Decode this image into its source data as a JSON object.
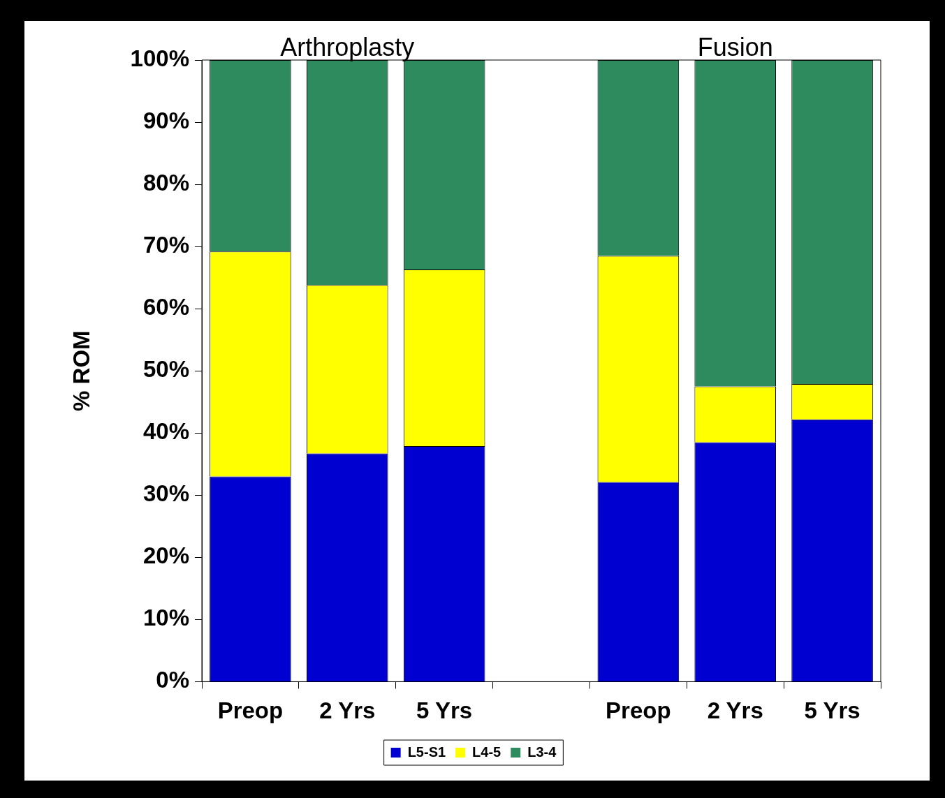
{
  "chart_data": {
    "type": "bar",
    "stacked": true,
    "ylabel": "% ROM",
    "annotations": [
      "Arthroplasty",
      "Fusion"
    ],
    "categories": [
      "Preop",
      "2 Yrs",
      "5 Yrs",
      null,
      "Preop",
      "2 Yrs",
      "5 Yrs"
    ],
    "series": [
      {
        "name": "L5-S1",
        "color": "#0000d0",
        "values": [
          33.0,
          36.7,
          37.9,
          null,
          32.1,
          38.5,
          42.2
        ]
      },
      {
        "name": "L4-5",
        "color": "#ffff00",
        "values": [
          36.2,
          27.1,
          28.4,
          null,
          36.4,
          9.0,
          5.7
        ]
      },
      {
        "name": "L3-4",
        "color": "#2e8b5e",
        "values": [
          30.8,
          36.2,
          33.7,
          null,
          31.5,
          52.5,
          52.1
        ]
      }
    ],
    "ylim": [
      0,
      100
    ],
    "yticks": [
      {
        "value": 0,
        "label": "0%"
      },
      {
        "value": 10,
        "label": "10%"
      },
      {
        "value": 20,
        "label": "20%"
      },
      {
        "value": 30,
        "label": "30%"
      },
      {
        "value": 40,
        "label": "40%"
      },
      {
        "value": 50,
        "label": "50%"
      },
      {
        "value": 60,
        "label": "60%"
      },
      {
        "value": 70,
        "label": "70%"
      },
      {
        "value": 80,
        "label": "80%"
      },
      {
        "value": 90,
        "label": "90%"
      },
      {
        "value": 100,
        "label": "100%"
      }
    ],
    "legend": "bottom",
    "grid": false
  }
}
